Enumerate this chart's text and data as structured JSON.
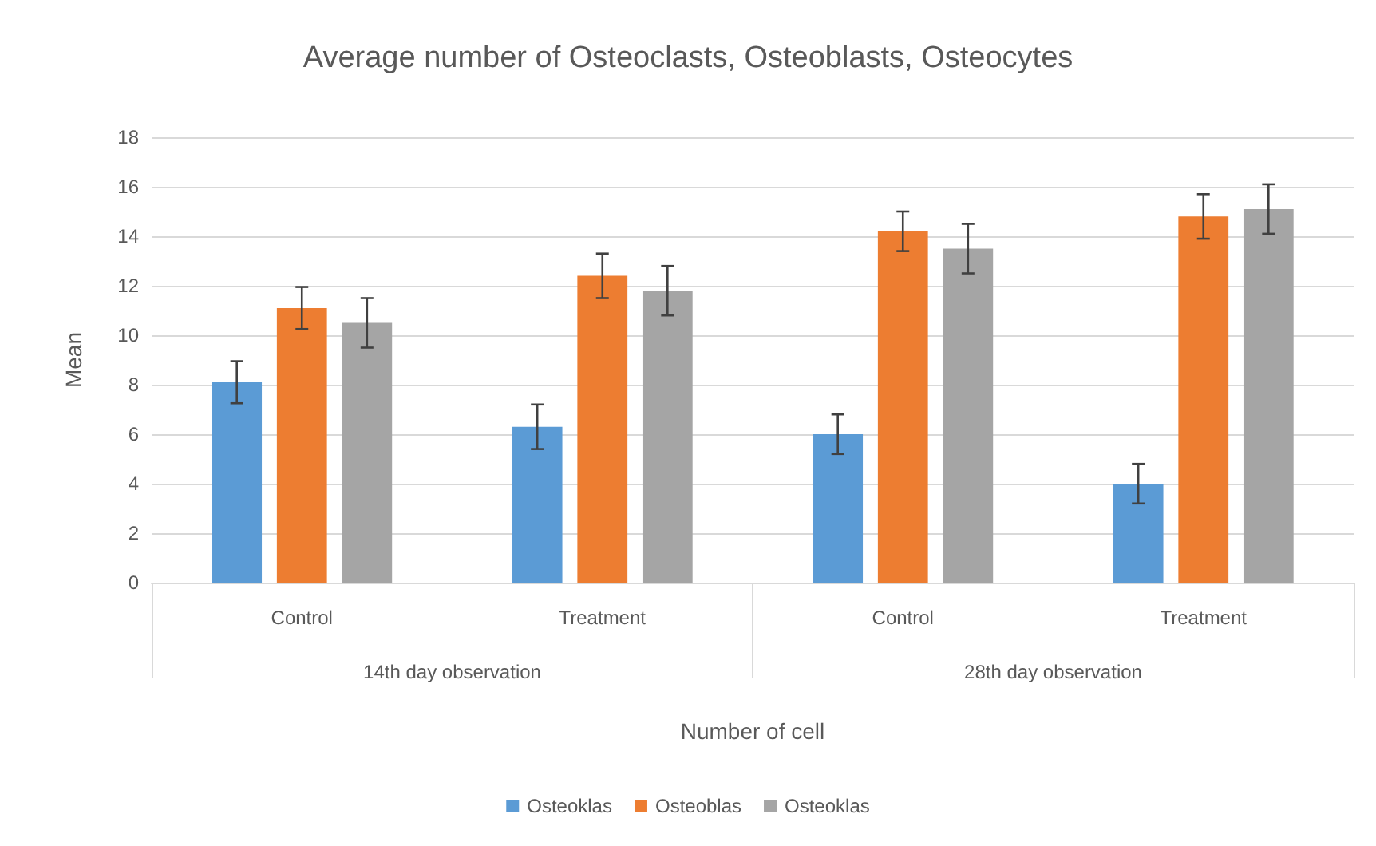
{
  "chart_data": {
    "type": "bar",
    "title": "Average number of Osteoclasts, Osteoblasts, Osteocytes",
    "xlabel": "Number of cell",
    "ylabel": "Mean",
    "categories": [
      "Control",
      "Treatment",
      "Control",
      "Treatment"
    ],
    "annotations": [
      "14th day observation",
      "28th day observation"
    ],
    "series": [
      {
        "name": "Osteoklas",
        "color": "#5b9bd5",
        "values": [
          8.1,
          6.3,
          6.0,
          4.0
        ],
        "errors": [
          0.85,
          0.9,
          0.8,
          0.8
        ]
      },
      {
        "name": "Osteoblas",
        "color": "#ed7d31",
        "values": [
          11.1,
          12.4,
          14.2,
          14.8
        ],
        "errors": [
          0.85,
          0.9,
          0.8,
          0.9
        ]
      },
      {
        "name": "Osteoklas",
        "color": "#a5a5a5",
        "values": [
          10.5,
          11.8,
          13.5,
          15.1
        ],
        "errors": [
          1.0,
          1.0,
          1.0,
          1.0
        ]
      }
    ],
    "ylim": [
      0,
      18
    ],
    "yticks": [
      0,
      2,
      4,
      6,
      8,
      10,
      12,
      14,
      16,
      18
    ],
    "grid": "y",
    "legend": "bottom"
  }
}
